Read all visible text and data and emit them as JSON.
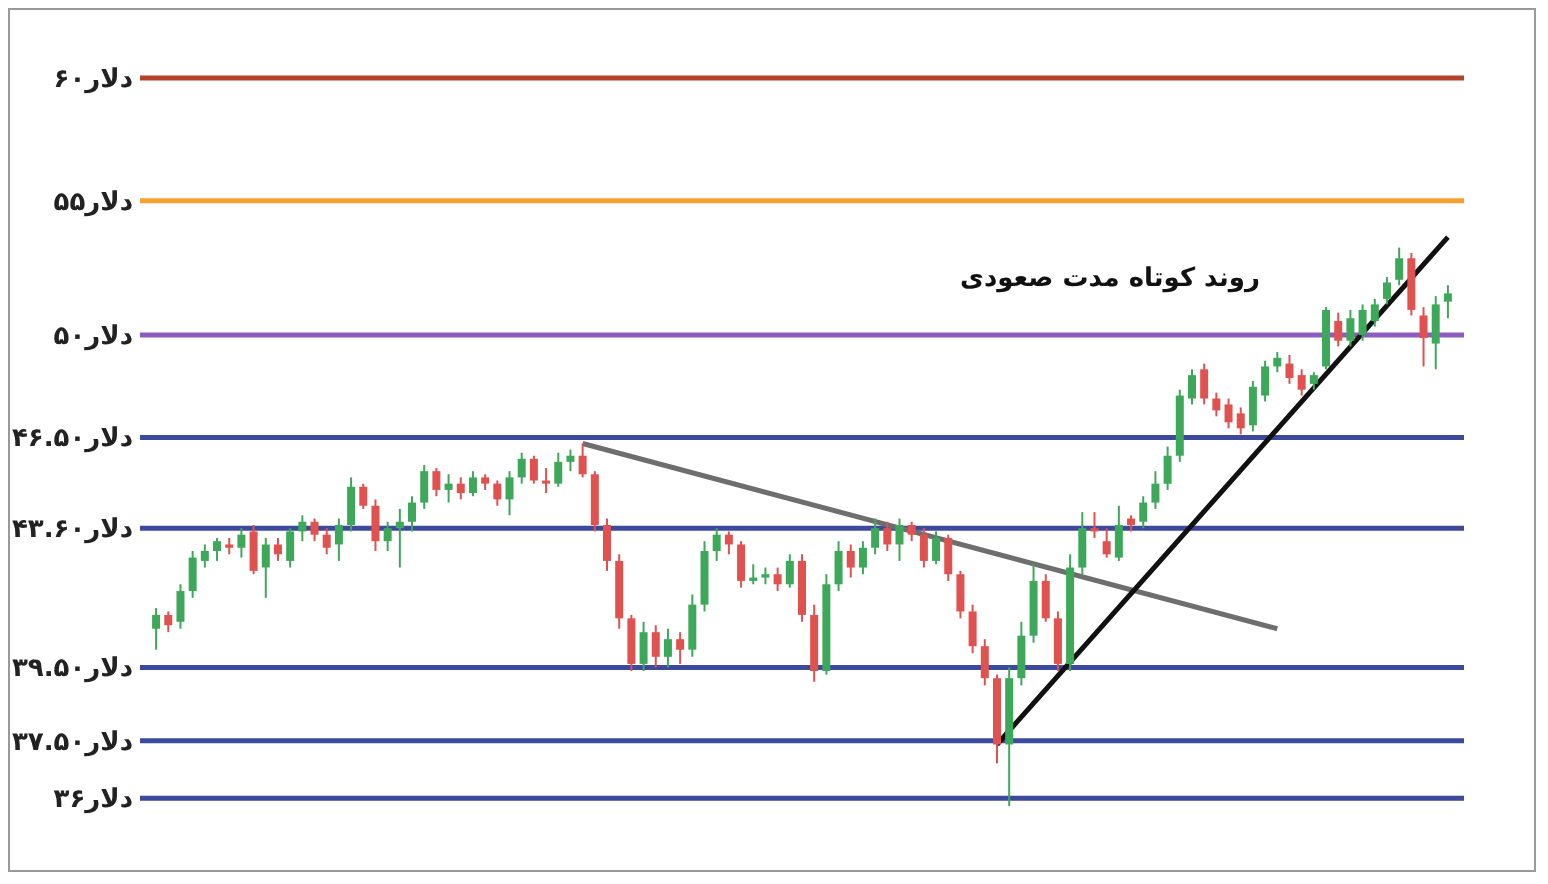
{
  "chart_data": {
    "type": "candlestick",
    "categories": [
      null,
      null,
      null,
      null,
      null,
      null,
      null,
      null,
      null,
      null,
      null,
      null,
      null,
      null,
      null,
      null,
      null,
      null,
      null,
      null,
      null,
      null,
      null,
      null,
      null,
      null,
      null,
      null,
      null,
      null,
      null,
      null,
      null,
      null,
      null,
      null,
      null,
      null,
      null,
      null,
      null,
      null,
      null,
      null,
      null,
      null,
      null,
      null,
      null,
      null,
      null,
      null,
      null,
      null,
      null,
      null,
      null,
      null,
      null,
      null,
      null,
      null,
      null,
      null,
      null,
      null,
      null,
      null,
      null,
      null,
      null,
      null,
      null,
      null,
      null,
      null,
      null,
      null,
      null,
      null,
      null,
      null,
      null,
      null,
      null,
      null,
      null,
      null,
      null,
      null,
      null,
      null,
      null,
      null,
      null,
      null,
      null,
      null,
      null,
      null,
      null,
      null,
      null,
      null,
      null,
      null,
      null
    ],
    "ohlc": [
      [
        40.6,
        41.2,
        40.0,
        41.0
      ],
      [
        41.0,
        41.1,
        40.5,
        40.7
      ],
      [
        40.8,
        41.9,
        40.6,
        41.7
      ],
      [
        41.7,
        42.9,
        41.5,
        42.7
      ],
      [
        42.6,
        43.1,
        42.4,
        42.9
      ],
      [
        42.9,
        43.3,
        42.6,
        43.2
      ],
      [
        43.1,
        43.3,
        42.8,
        43.0
      ],
      [
        43.0,
        43.6,
        42.7,
        43.4
      ],
      [
        43.5,
        43.7,
        42.2,
        42.3
      ],
      [
        42.4,
        43.3,
        41.5,
        43.1
      ],
      [
        43.1,
        43.3,
        42.6,
        42.8
      ],
      [
        42.6,
        43.6,
        42.4,
        43.5
      ],
      [
        43.5,
        44.0,
        43.2,
        43.8
      ],
      [
        43.8,
        43.9,
        43.2,
        43.4
      ],
      [
        43.4,
        43.6,
        42.8,
        43.0
      ],
      [
        43.1,
        43.9,
        42.6,
        43.7
      ],
      [
        43.7,
        45.2,
        43.5,
        44.9
      ],
      [
        44.9,
        45.0,
        44.2,
        44.3
      ],
      [
        44.3,
        44.5,
        42.9,
        43.2
      ],
      [
        43.2,
        43.8,
        42.9,
        43.6
      ],
      [
        43.6,
        44.2,
        42.4,
        43.8
      ],
      [
        43.8,
        44.6,
        43.5,
        44.4
      ],
      [
        44.4,
        45.6,
        44.2,
        45.4
      ],
      [
        45.4,
        45.5,
        44.6,
        44.8
      ],
      [
        44.8,
        45.3,
        44.4,
        45.0
      ],
      [
        45.0,
        45.2,
        44.5,
        44.7
      ],
      [
        44.7,
        45.4,
        44.6,
        45.2
      ],
      [
        45.2,
        45.3,
        44.8,
        45.0
      ],
      [
        45.0,
        45.1,
        44.3,
        44.5
      ],
      [
        44.5,
        45.4,
        44.0,
        45.2
      ],
      [
        45.2,
        46.0,
        45.0,
        45.8
      ],
      [
        45.8,
        45.9,
        45.0,
        45.1
      ],
      [
        45.1,
        45.5,
        44.7,
        45.0
      ],
      [
        45.0,
        46.0,
        44.9,
        45.7
      ],
      [
        45.7,
        46.1,
        45.4,
        45.9
      ],
      [
        45.9,
        46.3,
        45.2,
        45.3
      ],
      [
        45.3,
        45.4,
        43.5,
        43.7
      ],
      [
        43.7,
        43.9,
        42.3,
        42.6
      ],
      [
        42.6,
        42.8,
        40.6,
        40.9
      ],
      [
        40.9,
        41.0,
        39.4,
        39.6
      ],
      [
        39.6,
        40.8,
        39.4,
        40.5
      ],
      [
        40.5,
        40.7,
        39.5,
        39.8
      ],
      [
        39.8,
        40.6,
        39.5,
        40.3
      ],
      [
        40.3,
        40.5,
        39.6,
        40.0
      ],
      [
        40.0,
        41.6,
        39.8,
        41.3
      ],
      [
        41.3,
        43.2,
        41.1,
        42.9
      ],
      [
        42.9,
        43.6,
        42.6,
        43.4
      ],
      [
        43.4,
        43.5,
        42.8,
        43.1
      ],
      [
        43.1,
        43.2,
        41.8,
        42.0
      ],
      [
        42.0,
        42.5,
        41.9,
        42.1
      ],
      [
        42.1,
        42.4,
        41.9,
        42.2
      ],
      [
        42.2,
        42.4,
        41.7,
        41.9
      ],
      [
        41.9,
        42.8,
        41.8,
        42.6
      ],
      [
        42.6,
        42.8,
        40.8,
        41.0
      ],
      [
        41.0,
        41.3,
        39.1,
        39.4
      ],
      [
        39.4,
        42.2,
        39.3,
        41.9
      ],
      [
        41.9,
        43.2,
        41.7,
        42.9
      ],
      [
        42.9,
        43.1,
        42.1,
        42.4
      ],
      [
        42.4,
        43.2,
        42.2,
        43.0
      ],
      [
        43.0,
        43.9,
        42.8,
        43.6
      ],
      [
        43.6,
        43.8,
        42.9,
        43.1
      ],
      [
        43.1,
        43.9,
        42.6,
        43.7
      ],
      [
        43.7,
        43.8,
        43.2,
        43.4
      ],
      [
        43.4,
        43.6,
        42.4,
        42.6
      ],
      [
        42.6,
        43.5,
        42.5,
        43.3
      ],
      [
        43.3,
        43.4,
        42.0,
        42.2
      ],
      [
        42.2,
        42.3,
        40.9,
        41.1
      ],
      [
        41.1,
        41.3,
        39.9,
        40.1
      ],
      [
        40.1,
        40.3,
        39.0,
        39.2
      ],
      [
        39.2,
        39.3,
        36.9,
        37.4
      ],
      [
        37.4,
        39.5,
        35.8,
        39.2
      ],
      [
        39.2,
        40.8,
        39.0,
        40.4
      ],
      [
        40.4,
        42.5,
        40.2,
        42.0
      ],
      [
        42.0,
        42.2,
        40.8,
        40.9
      ],
      [
        40.9,
        41.1,
        39.4,
        39.6
      ],
      [
        39.6,
        42.8,
        39.4,
        42.4
      ],
      [
        42.4,
        44.1,
        42.2,
        43.6
      ],
      [
        43.6,
        44.1,
        43.3,
        43.5
      ],
      [
        43.2,
        43.6,
        42.7,
        42.8
      ],
      [
        42.7,
        44.3,
        42.6,
        43.7
      ],
      [
        43.9,
        44.0,
        43.5,
        43.7
      ],
      [
        43.8,
        44.6,
        43.6,
        44.4
      ],
      [
        44.4,
        45.4,
        44.2,
        45.0
      ],
      [
        45.0,
        46.2,
        44.8,
        45.9
      ],
      [
        45.9,
        48.1,
        45.7,
        47.9
      ],
      [
        47.8,
        48.8,
        47.6,
        48.6
      ],
      [
        48.8,
        49.0,
        47.6,
        47.8
      ],
      [
        47.8,
        48.0,
        47.2,
        47.4
      ],
      [
        47.6,
        47.8,
        46.8,
        47.0
      ],
      [
        47.3,
        47.5,
        46.6,
        46.8
      ],
      [
        46.9,
        48.4,
        46.7,
        48.2
      ],
      [
        47.9,
        49.1,
        47.7,
        48.9
      ],
      [
        48.9,
        49.4,
        48.7,
        49.2
      ],
      [
        49.0,
        49.3,
        48.3,
        48.5
      ],
      [
        48.6,
        48.8,
        47.9,
        48.1
      ],
      [
        48.3,
        48.7,
        48.1,
        48.6
      ],
      [
        48.9,
        51.0,
        48.8,
        50.9
      ],
      [
        50.5,
        50.8,
        49.6,
        49.8
      ],
      [
        49.8,
        50.9,
        49.6,
        50.6
      ],
      [
        50.0,
        51.1,
        49.8,
        50.9
      ],
      [
        50.5,
        51.3,
        50.3,
        51.1
      ],
      [
        51.3,
        52.1,
        51.1,
        51.9
      ],
      [
        52.0,
        53.2,
        51.8,
        52.8
      ],
      [
        52.8,
        53.0,
        50.7,
        50.9
      ],
      [
        50.7,
        51.0,
        48.9,
        49.9
      ],
      [
        49.7,
        51.4,
        48.8,
        51.1
      ],
      [
        51.2,
        51.8,
        50.6,
        51.5
      ]
    ],
    "series": [
      {
        "type": "line",
        "color": "#6e6e6e",
        "values": [
          null,
          null,
          null,
          null,
          null,
          null,
          null,
          null,
          null,
          null,
          null,
          null,
          null,
          null,
          null,
          null,
          null,
          null,
          null,
          null,
          null,
          null,
          null,
          null,
          null,
          null,
          null,
          null,
          null,
          null,
          null,
          null,
          null,
          null,
          null,
          46.3,
          null,
          null,
          null,
          null,
          null,
          null,
          null,
          null,
          null,
          null,
          null,
          null,
          null,
          null,
          null,
          null,
          null,
          null,
          null,
          null,
          null,
          null,
          null,
          null,
          null,
          null,
          null,
          null,
          null,
          null,
          null,
          null,
          null,
          null,
          null,
          null,
          null,
          null,
          null,
          null,
          null,
          null,
          null,
          null,
          null,
          null,
          null,
          null,
          null,
          null,
          null,
          null,
          null,
          null,
          null,
          null,
          40.6,
          null,
          null,
          null,
          null,
          null,
          null,
          null,
          null,
          null,
          null,
          null,
          null,
          null,
          null
        ]
      },
      {
        "type": "line",
        "color": "#111111",
        "values": [
          null,
          null,
          null,
          null,
          null,
          null,
          null,
          null,
          null,
          null,
          null,
          null,
          null,
          null,
          null,
          null,
          null,
          null,
          null,
          null,
          null,
          null,
          null,
          null,
          null,
          null,
          null,
          null,
          null,
          null,
          null,
          null,
          null,
          null,
          null,
          null,
          null,
          null,
          null,
          null,
          null,
          null,
          null,
          null,
          null,
          null,
          null,
          null,
          null,
          null,
          null,
          null,
          null,
          null,
          null,
          null,
          null,
          null,
          null,
          null,
          null,
          null,
          null,
          null,
          null,
          null,
          null,
          null,
          null,
          37.4,
          null,
          null,
          null,
          null,
          null,
          null,
          null,
          null,
          null,
          null,
          null,
          null,
          null,
          null,
          null,
          null,
          null,
          null,
          null,
          null,
          null,
          null,
          null,
          null,
          null,
          null,
          null,
          null,
          null,
          null,
          null,
          null,
          null,
          null,
          null,
          null,
          53.6
        ]
      }
    ],
    "log": "y",
    "ylim": [
      35.5,
      60
    ],
    "yticks": [
      {
        "value": 36,
        "label": "۳۶دلار"
      },
      {
        "value": 37.5,
        "label": "۳۷.۵۰دلار"
      },
      {
        "value": 39.5,
        "label": "۳۹.۵۰دلار"
      },
      {
        "value": 43.6,
        "label": "۴۳.۶۰دلار"
      },
      {
        "value": 46.5,
        "label": "۴۶.۵۰دلار"
      },
      {
        "value": 50,
        "label": "۵۰دلار"
      },
      {
        "value": 55,
        "label": "۵۵دلار"
      },
      {
        "value": 60,
        "label": "۶۰دلار"
      }
    ],
    "ref_lines": [
      {
        "axis": "y",
        "value": 60,
        "color": "#b5412a"
      },
      {
        "axis": "y",
        "value": 55,
        "color": "#f5a030"
      },
      {
        "axis": "y",
        "value": 50,
        "color": "#8e5bc0"
      },
      {
        "axis": "y",
        "value": 46.5,
        "color": "#3d4a9c"
      },
      {
        "axis": "y",
        "value": 43.6,
        "color": "#3d4a9c"
      },
      {
        "axis": "y",
        "value": 39.5,
        "color": "#3d4a9c"
      },
      {
        "axis": "y",
        "value": 37.5,
        "color": "#3d4a9c"
      },
      {
        "axis": "y",
        "value": 36,
        "color": "#3d4a9c"
      }
    ],
    "annotations": [
      "روند کوتاه مدت صعودی"
    ],
    "tick_labels": "y",
    "grid": false
  }
}
